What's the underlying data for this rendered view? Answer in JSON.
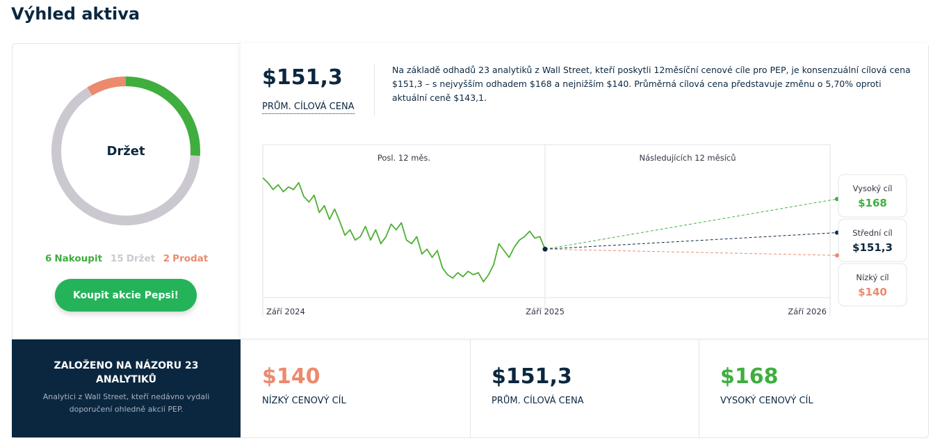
{
  "title": "Výhled aktiva",
  "chart_data": [
    {
      "type": "pie",
      "center_label": "Držet",
      "categories": [
        "Nakoupit",
        "Držet",
        "Prodat"
      ],
      "values": [
        6,
        15,
        2
      ],
      "colors": [
        "#3fae3f",
        "#cbc9cf",
        "#ec8a6e"
      ]
    },
    {
      "type": "line",
      "period_labels": [
        "Posl. 12 měs.",
        "Následujících 12 měsíců"
      ],
      "xtick_labels": [
        "Září 2024",
        "Září 2025",
        "Září 2026"
      ],
      "ylim": [
        119,
        195
      ],
      "color": "#4caf2f",
      "values": [
        178.5,
        176.1,
        172.7,
        175.1,
        171.6,
        174.0,
        172.7,
        176.1,
        169.2,
        166.5,
        169.9,
        161.3,
        164.7,
        157.9,
        163.0,
        156.8,
        150.0,
        152.7,
        147.6,
        149.3,
        154.4,
        147.6,
        152.7,
        145.8,
        149.3,
        155.5,
        152.7,
        156.2,
        147.6,
        145.8,
        149.3,
        140.7,
        143.1,
        139.0,
        142.4,
        133.8,
        130.4,
        128.7,
        131.4,
        129.4,
        132.1,
        130.4,
        131.4,
        126.9,
        130.4,
        135.5,
        145.8,
        142.4,
        139.0,
        144.1,
        147.6,
        149.3,
        152.0,
        148.6,
        149.3,
        143.1
      ],
      "targets": {
        "names": [
          "Vysoký cíl",
          "Střední cíl",
          "Nízký cíl"
        ],
        "values": [
          168,
          151.3,
          140
        ],
        "value_labels": [
          "$168",
          "$151,3",
          "$140"
        ],
        "colors": [
          "#3fae3f",
          "#0b2740",
          "#ec8a6e"
        ]
      }
    }
  ],
  "button": "Koupit akcie Pepsi!",
  "summary": {
    "price": "$151,3",
    "price_label": "PRŮM. CÍLOVÁ CENA",
    "description": "Na základě odhadů 23 analytiků z Wall Street, kteří poskytli 12měsíční cenové cíle pro PEP, je konsenzuální cílová cena $151,3 – s nejvyšším odhadem $168 a nejnižším $140. Průměrná cílová cena představuje změnu o 5,70% oproti aktuální ceně $143,1."
  },
  "basis": {
    "title": "ZALOŽENO NA NÁZORU 23 ANALYTIKŮ",
    "text": "Analytici z Wall Street, kteří nedávno vydali doporučení ohledně akcií PEP."
  },
  "cards": [
    {
      "value": "$140",
      "label": "NÍZKÝ CENOVÝ CÍL"
    },
    {
      "value": "$151,3",
      "label": "PRŮM. CÍLOVÁ CENA"
    },
    {
      "value": "$168",
      "label": "VYSOKÝ CENOVÝ CÍL"
    }
  ]
}
